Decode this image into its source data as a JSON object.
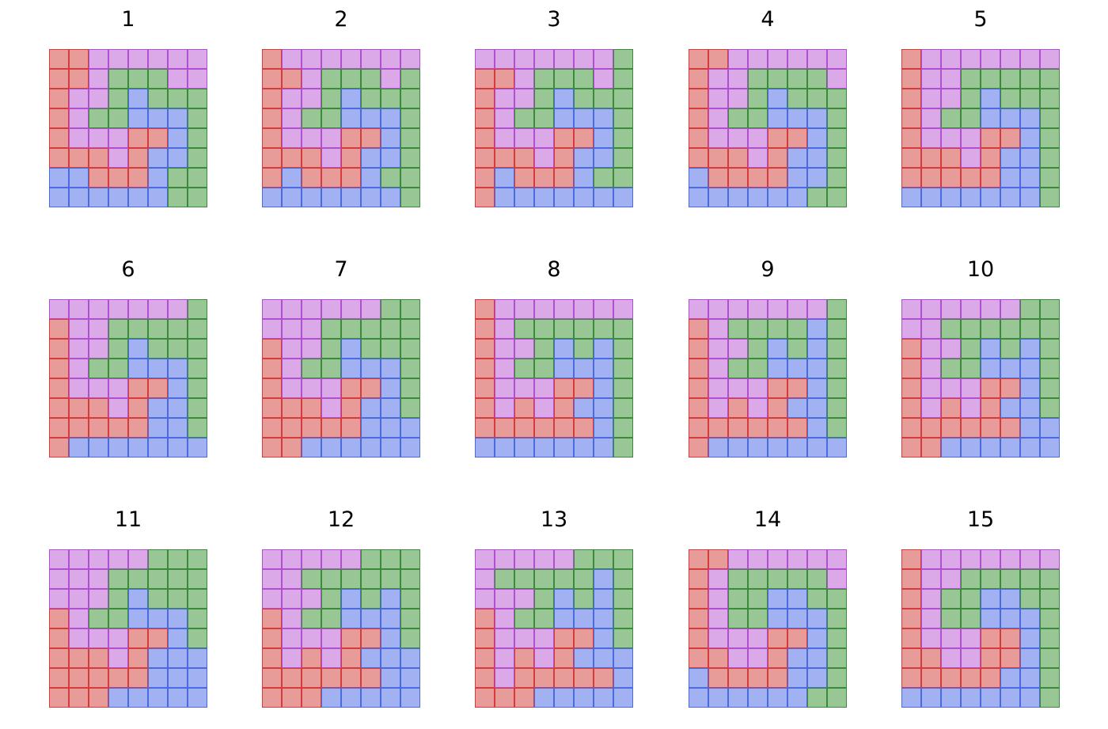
{
  "legend_colors": {
    "R": {
      "fill": "#e89c9a",
      "edge": "#d63a3a"
    },
    "P": {
      "fill": "#dba8e8",
      "edge": "#b14fd1"
    },
    "G": {
      "fill": "#98c795",
      "edge": "#3a8a3a"
    },
    "B": {
      "fill": "#a1b1f2",
      "edge": "#4a6ae0"
    }
  },
  "panels": [
    {
      "label": "1",
      "grid": [
        "RRPPPPPP",
        "RRPGGGPP",
        "RPPGBGGG",
        "RPGGBBBG",
        "RPPPRRBG",
        "RRRPRBBG",
        "BBRRRBGG",
        "BBBBBBGG"
      ]
    },
    {
      "label": "2",
      "grid": [
        "RPPPPPPP",
        "RRPGGGPG",
        "RPPGBGGG",
        "RPGGBBBG",
        "RPPPRRBG",
        "RRRPRBBG",
        "RBRRRBGG",
        "BBBBBBBG"
      ]
    },
    {
      "label": "3",
      "grid": [
        "PPPPPPPG",
        "RRPGGGPG",
        "RPPGBGGG",
        "RPGGBBBG",
        "RPPPRRBG",
        "RRRPRBBG",
        "RBRRRBGG",
        "RBBBBBBB"
      ]
    },
    {
      "label": "4",
      "grid": [
        "RRPPPPPP",
        "RPPGGGGP",
        "RPPGBGGG",
        "RPGGBBBG",
        "RPPPRRBG",
        "RRRPRBBG",
        "BRRRRBBG",
        "BBBBBBGG"
      ]
    },
    {
      "label": "5",
      "grid": [
        "RPPPPPPP",
        "RPPGGGGG",
        "RPPGBGGG",
        "RPGGBBBG",
        "RPPPRRBG",
        "RRRPRBBG",
        "RRRRRBBG",
        "BBBBBBBG"
      ]
    },
    {
      "label": "6",
      "grid": [
        "PPPPPPPG",
        "RPPGGGGG",
        "RPPGBGGG",
        "RPGGBBBG",
        "RPPPRRBG",
        "RRRPRBBG",
        "RRRRRBBG",
        "RBBBBBBB"
      ]
    },
    {
      "label": "7",
      "grid": [
        "PPPPPPGG",
        "PPPGGGGG",
        "RPPGBGGG",
        "RPGGBBBG",
        "RPPPRRBG",
        "RRRPRBBG",
        "RRRRRBBB",
        "RRBBBBBB"
      ]
    },
    {
      "label": "8",
      "grid": [
        "RPPPPPPP",
        "RPGGGGGG",
        "RPPGBGBG",
        "RPGGBBBG",
        "RPPPRRBG",
        "RPRPRBBG",
        "RRRRRRBG",
        "BBBBBBBG"
      ]
    },
    {
      "label": "9",
      "grid": [
        "PPPPPPPG",
        "RPGGGGBG",
        "RPPGBGBG",
        "RPGGBBBG",
        "RPPPRRBG",
        "RPRPRBBG",
        "RRRRRRBG",
        "RBBBBBBB"
      ]
    },
    {
      "label": "10",
      "grid": [
        "PPPPPPGG",
        "PPGGGGGG",
        "RPPGBGBG",
        "RPGGBBBG",
        "RPPPRRBG",
        "RPRPRBBG",
        "RRRRRRBB",
        "RRBBBBBB"
      ]
    },
    {
      "label": "11",
      "grid": [
        "PPPPPGGG",
        "PPPGGGGG",
        "PPPGBGGG",
        "RPGGBBBG",
        "RPPPRRBG",
        "RRRPRBBB",
        "RRRRRBBB",
        "RRRBBBBB"
      ]
    },
    {
      "label": "12",
      "grid": [
        "PPPPPGGG",
        "PPGGGGGG",
        "PPPGBGBG",
        "RPGGBBBG",
        "RPPPRRBG",
        "RPRPRBBB",
        "RRRRRRBB",
        "RRRBBBBB"
      ]
    },
    {
      "label": "13",
      "grid": [
        "PPPPPGGG",
        "PGGGGGBG",
        "PPPGBGBG",
        "RPGGBBBG",
        "RPPPRRBG",
        "RPRPRBBB",
        "RPRRRRRB",
        "RRRBBBBB"
      ]
    },
    {
      "label": "14",
      "grid": [
        "RRPPPPPP",
        "RPGGGGGP",
        "RPGGBBGG",
        "RPGGBBBG",
        "RPPPRRBG",
        "RRPPRBBG",
        "BRRRRBBG",
        "BBBBBBGG"
      ]
    },
    {
      "label": "15",
      "grid": [
        "RPPPPPPP",
        "RPPGGGGG",
        "RPGGBBGG",
        "RPGGBBBG",
        "RPPPRRBG",
        "RRPPRRBG",
        "RRRRRBBG",
        "BBBBBBBG"
      ]
    }
  ]
}
